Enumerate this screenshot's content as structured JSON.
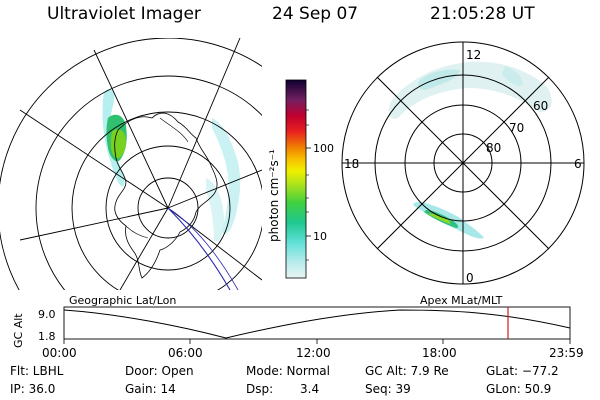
{
  "header": {
    "instrument": "Ultraviolet Imager",
    "date": "24 Sep 07",
    "time": "21:05:28 UT"
  },
  "colorbar": {
    "unit_label": "photon cm⁻²s⁻¹",
    "tick_100": "100",
    "tick_10": "10"
  },
  "polar_plot": {
    "mlt_top": "12",
    "mlt_left": "18",
    "mlt_right": "6",
    "mlt_bottom": "0",
    "lat_60": "60",
    "lat_70": "70",
    "lat_80": "80"
  },
  "panel_labels": {
    "left": "Geographic Lat/Lon",
    "right": "Apex MLat/MLT"
  },
  "timeline": {
    "ylabel": "GC Alt",
    "y_top": "9.0",
    "y_bottom": "1.8",
    "x_ticks": [
      "00:00",
      "06:00",
      "12:00",
      "18:00",
      "23:59"
    ]
  },
  "footer": {
    "row1": {
      "filter": "Flt: LBHL",
      "door": "Door: Open",
      "mode": "Mode: Normal",
      "gc_alt": "GC Alt: 7.9 Re",
      "glat": "GLat: −77.2"
    },
    "row2": {
      "ip": "IP: 36.0",
      "gain": "Gain: 14",
      "dsp_label": "Dsp:",
      "dsp_value": "3.4",
      "seq": "Seq: 39",
      "glon": "GLon:  50.9"
    }
  },
  "colors": {
    "cyan": "#7fe0e0",
    "green": "#58c828",
    "orbit_marker": "#cc2222",
    "track": "#2a2ab0"
  }
}
